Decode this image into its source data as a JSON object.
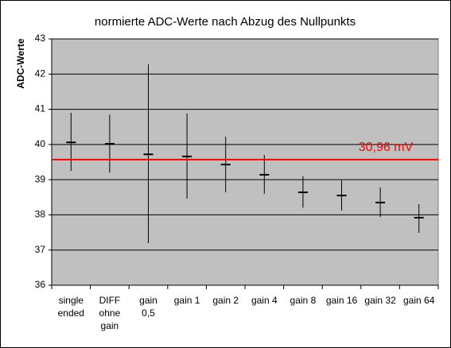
{
  "chart_data": {
    "type": "stock",
    "title": "normierte ADC-Werte nach Abzug des Nullpunkts",
    "y_label": "ADC-Werte",
    "categories": [
      [
        "single",
        "ended"
      ],
      [
        "DIFF",
        "ohne",
        "gain"
      ],
      [
        "gain",
        "0,5"
      ],
      [
        "gain 1"
      ],
      [
        "gain 2"
      ],
      [
        "gain 4"
      ],
      [
        "gain 8"
      ],
      [
        "gain 16"
      ],
      [
        "gain 32"
      ],
      [
        "gain 64"
      ]
    ],
    "values": [
      40.06,
      40.02,
      39.72,
      39.66,
      39.43,
      39.14,
      38.64,
      38.55,
      38.35,
      37.92
    ],
    "highs": [
      40.9,
      40.85,
      42.28,
      40.88,
      40.22,
      39.7,
      39.1,
      38.98,
      38.78,
      38.3
    ],
    "lows": [
      39.25,
      39.2,
      37.2,
      38.46,
      38.64,
      38.6,
      38.2,
      38.12,
      37.94,
      37.49
    ],
    "color": "#000000",
    "reference_line": {
      "value": 39.57,
      "label": "30,96 mV",
      "color": "#ff0000"
    },
    "ylim": [
      36,
      43
    ],
    "yticks": [
      36,
      37,
      38,
      39,
      40,
      41,
      42,
      43
    ],
    "grid": true,
    "plot_background": "#c0c0c0"
  }
}
